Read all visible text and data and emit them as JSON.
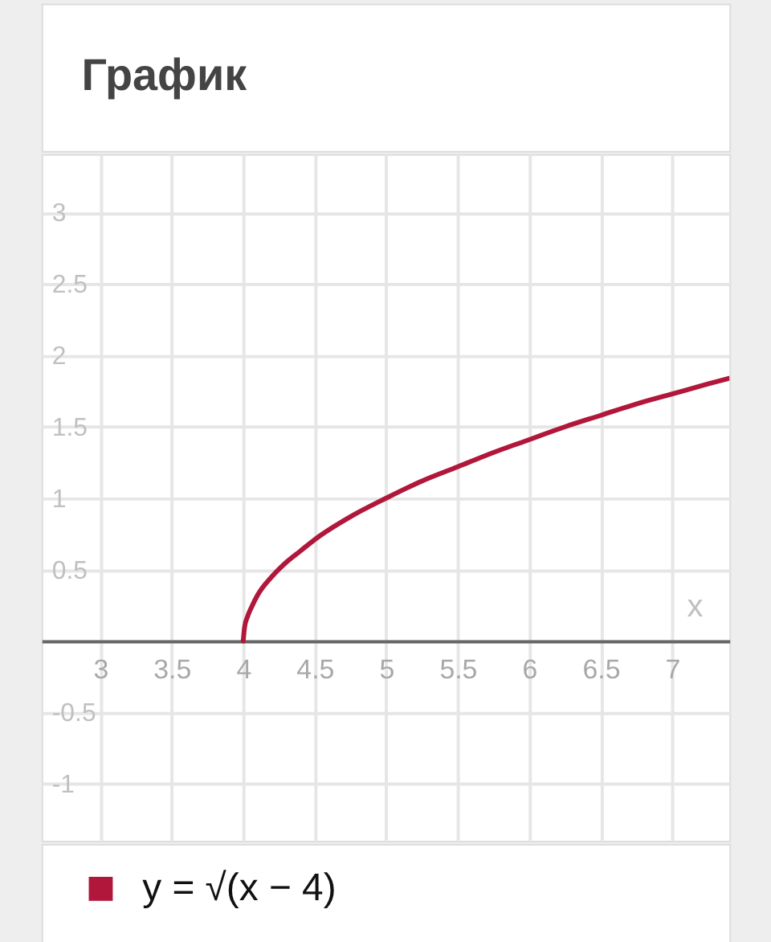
{
  "chart_data": {
    "type": "line",
    "title": "График",
    "xlabel": "x",
    "x": [
      4,
      4.01,
      4.03,
      4.06,
      4.1,
      4.2,
      4.3,
      4.4,
      4.5,
      4.75,
      5,
      5.25,
      5.5,
      5.75,
      6,
      6.25,
      6.5,
      6.75,
      7,
      7.25,
      7.4
    ],
    "series": [
      {
        "name": "y = √(x − 4)",
        "color": "#b0173b",
        "values": [
          0,
          0.1,
          0.17,
          0.24,
          0.32,
          0.45,
          0.55,
          0.63,
          0.71,
          0.87,
          1,
          1.12,
          1.22,
          1.32,
          1.41,
          1.5,
          1.58,
          1.66,
          1.73,
          1.8,
          1.84
        ]
      }
    ],
    "xlim": [
      2.59,
      7.4
    ],
    "ylim": [
      -1.4,
      3.41
    ],
    "xticks": [
      3,
      3.5,
      4,
      4.5,
      5,
      5.5,
      6,
      6.5,
      7
    ],
    "yticks": [
      -1,
      -0.5,
      {
        "value": 0,
        "label": null
      },
      0.5,
      1,
      1.5,
      2,
      2.5,
      3
    ],
    "grid": true,
    "legend": "bottom",
    "line_style": "solid"
  }
}
